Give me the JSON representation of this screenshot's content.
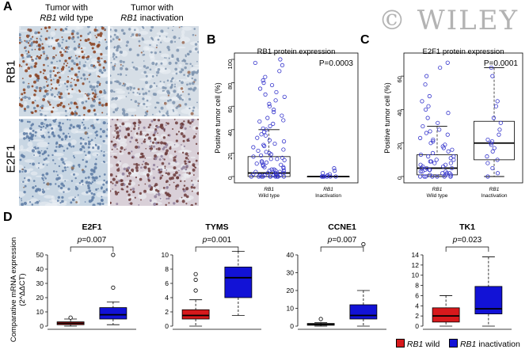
{
  "panels": {
    "A": "A",
    "B": "B",
    "C": "C",
    "D": "D"
  },
  "panel_a": {
    "col1_title_line1": "Tumor with",
    "col1_title_line2_italic": "RB1",
    "col1_title_line2_rest": " wild type",
    "col2_title_line1": "Tumor with",
    "col2_title_line2_italic": "RB1",
    "col2_title_line2_rest": " inactivation",
    "row1_label": "RB1",
    "row2_label": "E2F1"
  },
  "watermark": "© WILEY",
  "colors": {
    "box_red": "#d7191c",
    "box_blue": "#1212d6",
    "point_blue": "#3333cc",
    "stain_brown": "#8a3e1c",
    "tissue_blue": "#c9d6e3"
  },
  "chart_data": [
    {
      "type": "box",
      "panel": "B",
      "title": "RB1 protein expression",
      "ylabel": "Positive tumor cell (%)",
      "ylim": [
        0,
        100
      ],
      "yticks": [
        0,
        20,
        40,
        60,
        80,
        100
      ],
      "pvalue_text": "P=0.0003",
      "categories": [
        {
          "italic": "RB1",
          "sub": "Wild type",
          "q1": 0,
          "median": 3,
          "q3": 17,
          "whisker_low": 0,
          "whisker_high": 40
        },
        {
          "italic": "RB1",
          "sub": "Inactivation",
          "q1": 0,
          "median": 0,
          "q3": 0,
          "whisker_low": 0,
          "whisker_high": 0
        }
      ],
      "points": [
        [
          0,
          [
            0,
            0,
            0,
            0,
            0,
            0,
            0,
            0,
            0,
            0,
            0,
            1,
            1,
            1,
            1,
            2,
            2,
            2,
            3,
            3,
            3,
            4,
            4,
            5,
            5,
            5,
            6,
            6,
            7,
            8,
            8,
            9,
            10,
            10,
            11,
            12,
            12,
            13,
            14,
            15,
            15,
            16,
            17,
            18,
            19,
            20,
            21,
            22,
            23,
            25,
            26,
            27,
            28,
            30,
            31,
            33,
            35,
            36,
            38,
            40,
            41,
            43,
            45,
            47,
            48,
            50,
            52,
            55,
            57,
            60,
            62,
            65,
            68,
            70,
            72,
            75,
            78,
            80,
            82,
            85,
            90,
            95,
            97,
            100
          ]
        ],
        [
          1,
          [
            0,
            0,
            0,
            0,
            0,
            0,
            0,
            0,
            1,
            2,
            3,
            5,
            7
          ]
        ]
      ]
    },
    {
      "type": "box",
      "panel": "C",
      "title": "E2F1 protein expression",
      "ylabel": "Positive tumor cell (%)",
      "ylim": [
        0,
        70
      ],
      "yticks": [
        0,
        20,
        40,
        60
      ],
      "pvalue_text": "P=0.0001",
      "categories": [
        {
          "italic": "RB1",
          "sub": "Wild type",
          "q1": 1,
          "median": 5,
          "q3": 13,
          "whisker_low": 0,
          "whisker_high": 30
        },
        {
          "italic": "RB1",
          "sub": "Inactivation",
          "q1": 10,
          "median": 20,
          "q3": 33,
          "whisker_low": 0,
          "whisker_high": 65
        }
      ],
      "points": [
        [
          0,
          [
            0,
            0,
            0,
            0,
            0,
            0,
            0,
            0,
            1,
            1,
            1,
            2,
            2,
            2,
            3,
            3,
            3,
            4,
            4,
            4,
            5,
            5,
            5,
            6,
            6,
            7,
            7,
            8,
            8,
            9,
            9,
            10,
            10,
            11,
            12,
            12,
            13,
            14,
            15,
            16,
            17,
            18,
            19,
            20,
            21,
            22,
            23,
            25,
            26,
            27,
            28,
            30,
            32,
            35,
            38,
            40,
            42,
            45,
            48,
            55,
            60,
            65,
            68
          ]
        ],
        [
          1,
          [
            0,
            2,
            5,
            8,
            10,
            12,
            15,
            17,
            19,
            20,
            21,
            22,
            25,
            28,
            32,
            35,
            42,
            45,
            60,
            65
          ]
        ]
      ]
    },
    {
      "type": "box",
      "panel": "D",
      "title": "E2F1",
      "pvalue_text": "p=0.007",
      "pvalue_prefix": "p",
      "pvalue_rest": "=0.007",
      "ylim": [
        0,
        50
      ],
      "yticks": [
        0,
        10,
        20,
        30,
        40,
        50
      ],
      "series": [
        {
          "name": "RB1 wild",
          "q1": 1,
          "median": 2,
          "q3": 3,
          "whisker_low": 0,
          "whisker_high": 5,
          "outliers": [
            6
          ]
        },
        {
          "name": "RB1 inactivation",
          "q1": 5,
          "median": 8,
          "q3": 13,
          "whisker_low": 1,
          "whisker_high": 17,
          "outliers": [
            27,
            50
          ]
        }
      ]
    },
    {
      "type": "box",
      "panel": "D",
      "title": "TYMS",
      "pvalue_text": "p=0.001",
      "pvalue_prefix": "p",
      "pvalue_rest": "=0.001",
      "ylim": [
        0,
        10
      ],
      "yticks": [
        0,
        2,
        4,
        6,
        8,
        10
      ],
      "series": [
        {
          "name": "RB1 wild",
          "q1": 1,
          "median": 1.5,
          "q3": 2.3,
          "whisker_low": 0,
          "whisker_high": 3.7,
          "outliers": [
            5,
            6.5,
            7.3
          ]
        },
        {
          "name": "RB1 inactivation",
          "q1": 4,
          "median": 6.8,
          "q3": 8.3,
          "whisker_low": 1.5,
          "whisker_high": 10.5,
          "outliers": []
        }
      ]
    },
    {
      "type": "box",
      "panel": "D",
      "title": "CCNE1",
      "pvalue_text": "p=0.007",
      "pvalue_prefix": "p",
      "pvalue_rest": "=0.007",
      "ylim": [
        0,
        40
      ],
      "yticks": [
        0,
        10,
        20,
        30,
        40
      ],
      "series": [
        {
          "name": "RB1 wild",
          "q1": 0.5,
          "median": 1,
          "q3": 1.5,
          "whisker_low": 0,
          "whisker_high": 2,
          "outliers": [
            4
          ]
        },
        {
          "name": "RB1 inactivation",
          "q1": 4,
          "median": 6,
          "q3": 12,
          "whisker_low": 0,
          "whisker_high": 20,
          "outliers": [
            46
          ]
        }
      ]
    },
    {
      "type": "box",
      "panel": "D",
      "title": "TK1",
      "pvalue_text": "p=0.023",
      "pvalue_prefix": "p",
      "pvalue_rest": "=0.023",
      "ylim": [
        0,
        14
      ],
      "yticks": [
        0,
        2,
        4,
        6,
        8,
        10,
        12,
        14
      ],
      "series": [
        {
          "name": "RB1 wild",
          "q1": 0.8,
          "median": 2,
          "q3": 3.6,
          "whisker_low": 0,
          "whisker_high": 6,
          "outliers": []
        },
        {
          "name": "RB1 inactivation",
          "q1": 2.4,
          "median": 3.4,
          "q3": 7.8,
          "whisker_low": 0,
          "whisker_high": 13.6,
          "outliers": []
        }
      ]
    }
  ],
  "panel_d": {
    "ylabel_line1": "Comparative mRNA expression",
    "ylabel_line2": "(2^ΔΔCT)",
    "legend": [
      {
        "italic": "RB1",
        "rest": " wild",
        "color": "#d7191c"
      },
      {
        "italic": "RB1",
        "rest": " inactivation",
        "color": "#1212d6"
      }
    ]
  }
}
